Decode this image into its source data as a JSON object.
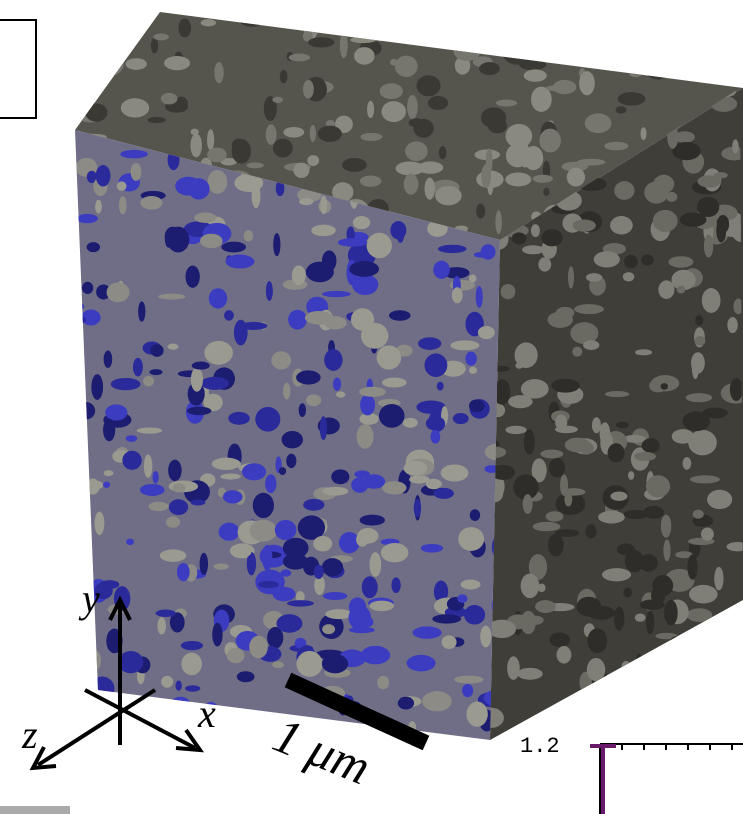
{
  "axes": {
    "y_label": "y",
    "x_label": "x",
    "z_label": "z"
  },
  "scale_bar": {
    "label": "1 μm"
  },
  "inset": {
    "tick_label": "1.2"
  }
}
